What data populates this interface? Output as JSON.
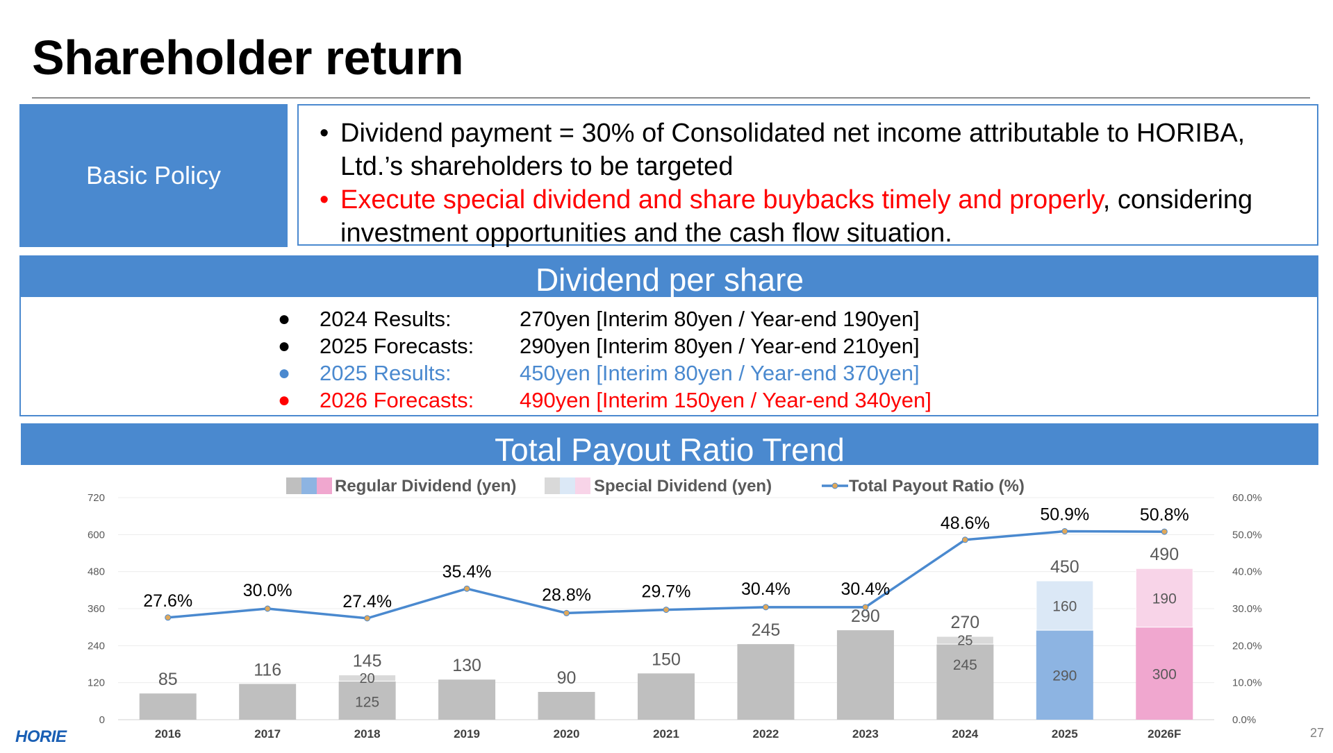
{
  "title": "Shareholder return",
  "policy": {
    "label": "Basic Policy",
    "bullet": "•",
    "line1": "Dividend payment = 30% of Consolidated net income attributable to HORIBA, Ltd.’s shareholders to be targeted",
    "line2_red": "Execute special dividend and share buybacks timely and properly",
    "line2_black": ", considering investment opportunities and the cash flow situation."
  },
  "dps": {
    "heading": "Dividend per share",
    "bullet": "●",
    "rows": [
      {
        "key": "2024 Results:",
        "value": "270yen [Interim 80yen / Year-end 190yen]",
        "color": "#000000"
      },
      {
        "key": "2025 Forecasts:",
        "value": "290yen [Interim 80yen / Year-end 210yen]",
        "color": "#000000"
      },
      {
        "key": "2025 Results:",
        "value": "450yen [Interim 80yen / Year-end 370yen]",
        "color": "#4a89cf"
      },
      {
        "key": "2026 Forecasts:",
        "value": "490yen [Interim 150yen / Year-end 340yen]",
        "color": "#ff0000"
      }
    ]
  },
  "trend_heading": "Total Payout Ratio Trend",
  "colors": {
    "brand": "#4a89cf",
    "regular_gray": "#bfbfbf",
    "regular_blue": "#8db4e2",
    "regular_pink": "#f0a7cf",
    "special_gray": "#d9d9d9",
    "special_blue": "#dbe8f6",
    "special_pink": "#f8d4e8",
    "line": "#4a89cf",
    "marker": "#e0a85a"
  },
  "chart_data": {
    "type": "bar",
    "categories": [
      "2016",
      "2017",
      "2018",
      "2019",
      "2020",
      "2021",
      "2022",
      "2023",
      "2024",
      "2025",
      "2026F"
    ],
    "series": [
      {
        "name": "Regular Dividend (yen)",
        "values": [
          85,
          116,
          125,
          130,
          90,
          150,
          245,
          290,
          245,
          290,
          300
        ]
      },
      {
        "name": "Special Dividend (yen)",
        "values": [
          0,
          0,
          20,
          0,
          0,
          0,
          0,
          0,
          25,
          160,
          190
        ]
      },
      {
        "name": "Total Payout Ratio (%)",
        "values": [
          27.6,
          30.0,
          27.4,
          35.4,
          28.8,
          29.7,
          30.4,
          30.4,
          48.6,
          50.9,
          50.8
        ],
        "axis": "right"
      }
    ],
    "totals": [
      85,
      116,
      145,
      130,
      90,
      150,
      245,
      290,
      270,
      450,
      490
    ],
    "ratio_labels": [
      "27.6%",
      "30.0%",
      "27.4%",
      "35.4%",
      "28.8%",
      "29.7%",
      "30.4%",
      "30.4%",
      "48.6%",
      "50.9%",
      "50.8%"
    ],
    "y_ticks": [
      "0",
      "120",
      "240",
      "360",
      "480",
      "600",
      "720"
    ],
    "y2_ticks": [
      "0.0%",
      "10.0%",
      "20.0%",
      "30.0%",
      "40.0%",
      "50.0%",
      "60.0%"
    ],
    "ylim": [
      0,
      720
    ],
    "y2lim": [
      0,
      60
    ],
    "legend": [
      "Regular Dividend (yen)",
      "Special Dividend (yen)",
      "Total Payout Ratio (%)"
    ],
    "legend_position": "top",
    "grid": true
  },
  "footer": {
    "page": "27",
    "logo": "HORIE"
  }
}
